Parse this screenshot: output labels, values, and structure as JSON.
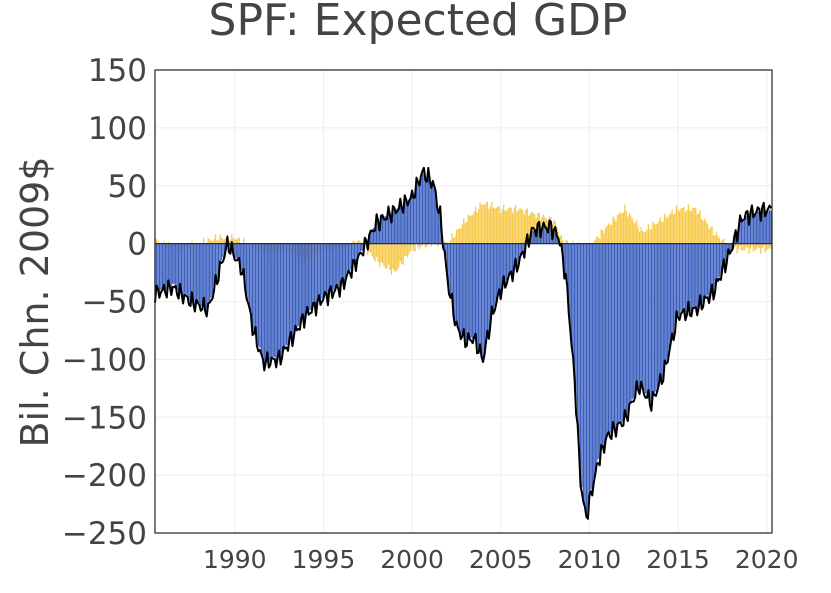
{
  "chart_data": {
    "type": "bar",
    "title": "SPF: Expected GDP",
    "ylabel": "Bil. Chn. 2009$",
    "xlabel": "",
    "xlim": [
      1985.5,
      2020.3
    ],
    "ylim": [
      -250,
      150
    ],
    "yticks": [
      150,
      100,
      50,
      0,
      -50,
      -100,
      -150,
      -200,
      -250
    ],
    "ytick_labels": [
      "150",
      "100",
      "50",
      "0",
      "−50",
      "−100",
      "−150",
      "−200",
      "−250"
    ],
    "xticks": [
      1990,
      1995,
      2000,
      2005,
      2010,
      2015,
      2020
    ],
    "xtick_labels": [
      "1990",
      "1995",
      "2000",
      "2005",
      "2010",
      "2015",
      "2020"
    ],
    "grid": true,
    "colors": {
      "gap": "#3b5fbf",
      "change": "#f7c948",
      "line": "#000000"
    },
    "knots": {
      "gap": [
        [
          1985.5,
          -42
        ],
        [
          1986.5,
          -35
        ],
        [
          1987.5,
          -48
        ],
        [
          1988.5,
          -55
        ],
        [
          1989.3,
          -12
        ],
        [
          1989.6,
          0
        ],
        [
          1990.4,
          -20
        ],
        [
          1991.0,
          -70
        ],
        [
          1991.6,
          -100
        ],
        [
          1992.5,
          -98
        ],
        [
          1993.2,
          -80
        ],
        [
          1994.0,
          -60
        ],
        [
          1995.0,
          -45
        ],
        [
          1996.0,
          -35
        ],
        [
          1997.0,
          -10
        ],
        [
          1998.0,
          20
        ],
        [
          1999.0,
          30
        ],
        [
          2000.0,
          40
        ],
        [
          2000.6,
          60
        ],
        [
          2001.2,
          50
        ],
        [
          2001.6,
          20
        ],
        [
          2002.0,
          -30
        ],
        [
          2002.5,
          -70
        ],
        [
          2003.0,
          -82
        ],
        [
          2003.5,
          -80
        ],
        [
          2004.0,
          -97
        ],
        [
          2004.5,
          -60
        ],
        [
          2005.0,
          -38
        ],
        [
          2006.0,
          -15
        ],
        [
          2006.8,
          10
        ],
        [
          2007.8,
          15
        ],
        [
          2008.3,
          5
        ],
        [
          2008.7,
          -30
        ],
        [
          2009.2,
          -120
        ],
        [
          2009.5,
          -200
        ],
        [
          2009.8,
          -235
        ],
        [
          2010.5,
          -185
        ],
        [
          2011.0,
          -165
        ],
        [
          2012.0,
          -150
        ],
        [
          2012.8,
          -120
        ],
        [
          2013.5,
          -135
        ],
        [
          2014.2,
          -110
        ],
        [
          2015.0,
          -60
        ],
        [
          2016.0,
          -55
        ],
        [
          2017.0,
          -40
        ],
        [
          2018.0,
          -5
        ],
        [
          2018.6,
          20
        ],
        [
          2019.3,
          25
        ],
        [
          2020.3,
          28
        ]
      ],
      "change": [
        [
          1985.5,
          2
        ],
        [
          1987.0,
          -5
        ],
        [
          1988.0,
          0
        ],
        [
          1989.0,
          5
        ],
        [
          1990.0,
          5
        ],
        [
          1991.0,
          -3
        ],
        [
          1992.0,
          -10
        ],
        [
          1993.0,
          -5
        ],
        [
          1994.0,
          -15
        ],
        [
          1995.0,
          -5
        ],
        [
          1996.0,
          -5
        ],
        [
          1997.0,
          2
        ],
        [
          1998.0,
          -15
        ],
        [
          1999.0,
          -25
        ],
        [
          2000.0,
          -5
        ],
        [
          2001.0,
          0
        ],
        [
          2002.0,
          0
        ],
        [
          2003.0,
          20
        ],
        [
          2004.0,
          35
        ],
        [
          2005.0,
          30
        ],
        [
          2006.0,
          30
        ],
        [
          2007.0,
          25
        ],
        [
          2008.0,
          20
        ],
        [
          2008.5,
          2
        ],
        [
          2009.0,
          0
        ],
        [
          2010.0,
          -3
        ],
        [
          2011.0,
          15
        ],
        [
          2012.0,
          30
        ],
        [
          2013.0,
          10
        ],
        [
          2014.0,
          20
        ],
        [
          2015.0,
          30
        ],
        [
          2016.0,
          30
        ],
        [
          2017.0,
          10
        ],
        [
          2018.0,
          -5
        ],
        [
          2019.0,
          -5
        ],
        [
          2020.0,
          -5
        ]
      ],
      "line": [
        [
          1985.5,
          -43
        ],
        [
          1986.5,
          -38
        ],
        [
          1987.5,
          -50
        ],
        [
          1988.5,
          -57
        ],
        [
          1989.3,
          -15
        ],
        [
          1989.6,
          0
        ],
        [
          1990.4,
          -22
        ],
        [
          1991.0,
          -72
        ],
        [
          1991.6,
          -103
        ],
        [
          1992.5,
          -100
        ],
        [
          1993.2,
          -82
        ],
        [
          1994.0,
          -62
        ],
        [
          1995.0,
          -47
        ],
        [
          1996.0,
          -37
        ],
        [
          1997.0,
          -12
        ],
        [
          1998.0,
          18
        ],
        [
          1999.0,
          28
        ],
        [
          2000.0,
          40
        ],
        [
          2000.6,
          62
        ],
        [
          2001.2,
          52
        ],
        [
          2001.6,
          22
        ],
        [
          2002.0,
          -32
        ],
        [
          2002.5,
          -72
        ],
        [
          2003.0,
          -84
        ],
        [
          2003.5,
          -82
        ],
        [
          2004.0,
          -100
        ],
        [
          2004.5,
          -62
        ],
        [
          2005.0,
          -40
        ],
        [
          2006.0,
          -17
        ],
        [
          2006.8,
          12
        ],
        [
          2007.8,
          15
        ],
        [
          2008.3,
          5
        ],
        [
          2008.7,
          -32
        ],
        [
          2009.2,
          -125
        ],
        [
          2009.5,
          -205
        ],
        [
          2009.8,
          -238
        ],
        [
          2010.5,
          -188
        ],
        [
          2011.0,
          -167
        ],
        [
          2012.0,
          -152
        ],
        [
          2012.8,
          -122
        ],
        [
          2013.5,
          -138
        ],
        [
          2014.2,
          -112
        ],
        [
          2015.0,
          -62
        ],
        [
          2016.0,
          -57
        ],
        [
          2017.0,
          -42
        ],
        [
          2018.0,
          -5
        ],
        [
          2018.6,
          22
        ],
        [
          2019.3,
          27
        ],
        [
          2020.3,
          30
        ]
      ]
    }
  }
}
